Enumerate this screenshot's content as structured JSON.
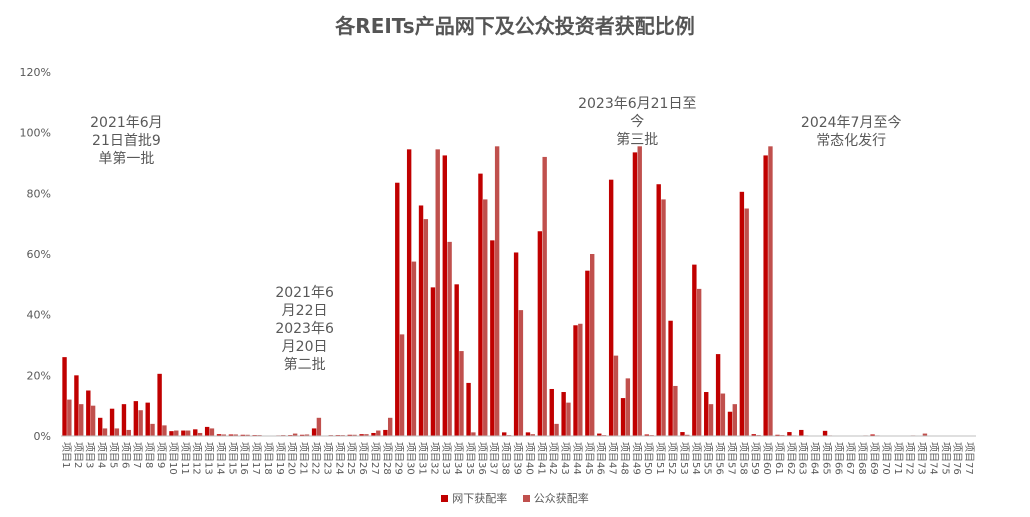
{
  "chart_data": {
    "type": "bar",
    "title": "各REITs产品网下及公众投资者获配比例",
    "xlabel": "",
    "ylabel": "",
    "ylim": [
      0,
      1.2
    ],
    "y_ticks": [
      "0%",
      "20%",
      "40%",
      "60%",
      "80%",
      "100%",
      "120%"
    ],
    "grid": false,
    "legend_position": "bottom",
    "categories": [
      "项目1",
      "项目2",
      "项目3",
      "项目4",
      "项目5",
      "项目6",
      "项目7",
      "项目8",
      "项目9",
      "项目10",
      "项目11",
      "项目12",
      "项目13",
      "项目14",
      "项目15",
      "项目16",
      "项目17",
      "项目18",
      "项目19",
      "项目20",
      "项目21",
      "项目22",
      "项目23",
      "项目24",
      "项目25",
      "项目26",
      "项目27",
      "项目28",
      "项目29",
      "项目30",
      "项目31",
      "项目32",
      "项目33",
      "项目34",
      "项目35",
      "项目36",
      "项目37",
      "项目38",
      "项目39",
      "项目40",
      "项目41",
      "项目42",
      "项目43",
      "项目44",
      "项目45",
      "项目46",
      "项目47",
      "项目48",
      "项目49",
      "项目50",
      "项目51",
      "项目52",
      "项目53",
      "项目54",
      "项目55",
      "项目56",
      "项目57",
      "项目58",
      "项目59",
      "项目60",
      "项目61",
      "项目62",
      "项目63",
      "项目64",
      "项目65",
      "项目66",
      "项目67",
      "项目68",
      "项目69",
      "项目70",
      "项目71",
      "项目72",
      "项目73",
      "项目74",
      "项目75",
      "项目76",
      "项目77"
    ],
    "series": [
      {
        "name": "网下获配率",
        "color": "#C00000",
        "values": [
          0.26,
          0.2,
          0.15,
          0.06,
          0.09,
          0.105,
          0.115,
          0.11,
          0.205,
          0.016,
          0.018,
          0.022,
          0.03,
          0.006,
          0.005,
          0.004,
          0.003,
          0.001,
          0.002,
          0.003,
          0.004,
          0.025,
          0.001,
          0.003,
          0.004,
          0.006,
          0.01,
          0.02,
          0.835,
          0.945,
          0.76,
          0.49,
          0.925,
          0.5,
          0.175,
          0.865,
          0.645,
          0.012,
          0.605,
          0.012,
          0.675,
          0.155,
          0.145,
          0.365,
          0.545,
          0.008,
          0.845,
          0.125,
          0.935,
          0.005,
          0.83,
          0.38,
          0.013,
          0.565,
          0.145,
          0.27,
          0.08,
          0.805,
          0.006,
          0.925,
          0.004,
          0.013,
          0.02,
          0.001,
          0.017,
          0.001,
          0.001,
          0.001,
          0.005,
          0.001,
          0.001,
          0.001,
          0.001,
          0.001,
          0.001,
          0.001,
          0.001
        ]
      },
      {
        "name": "公众获配率",
        "color": "#C0504D",
        "values": [
          0.12,
          0.105,
          0.1,
          0.025,
          0.025,
          0.02,
          0.085,
          0.04,
          0.035,
          0.018,
          0.018,
          0.01,
          0.025,
          0.005,
          0.005,
          0.004,
          0.003,
          0.001,
          0.003,
          0.008,
          0.005,
          0.06,
          0.003,
          0.003,
          0.004,
          0.006,
          0.018,
          0.06,
          0.335,
          0.575,
          0.715,
          0.945,
          0.64,
          0.28,
          0.012,
          0.78,
          0.955,
          0.003,
          0.415,
          0.006,
          0.92,
          0.04,
          0.11,
          0.37,
          0.6,
          0.003,
          0.265,
          0.19,
          0.955,
          0.003,
          0.78,
          0.165,
          0.004,
          0.485,
          0.105,
          0.14,
          0.105,
          0.75,
          0.003,
          0.955,
          0.003,
          0.002,
          0.002,
          0.001,
          0.002,
          0.001,
          0.001,
          0.002,
          0.002,
          0.001,
          0.001,
          0.002,
          0.008,
          0.001,
          0.001,
          0.001,
          0.001
        ]
      }
    ],
    "annotations": [
      {
        "lines": [
          "2021年6月",
          "21日首批9",
          "单第一批"
        ],
        "anchor_category": 5
      },
      {
        "lines": [
          "2021年6",
          "月22日",
          "2023年6",
          "月20日",
          "第二批"
        ],
        "anchor_category": 20
      },
      {
        "lines": [
          "2023年6月21日至",
          "今",
          "第三批"
        ],
        "anchor_category": 48
      },
      {
        "lines": [
          "2024年7月至今",
          "常态化发行"
        ],
        "anchor_category": 66
      }
    ]
  }
}
